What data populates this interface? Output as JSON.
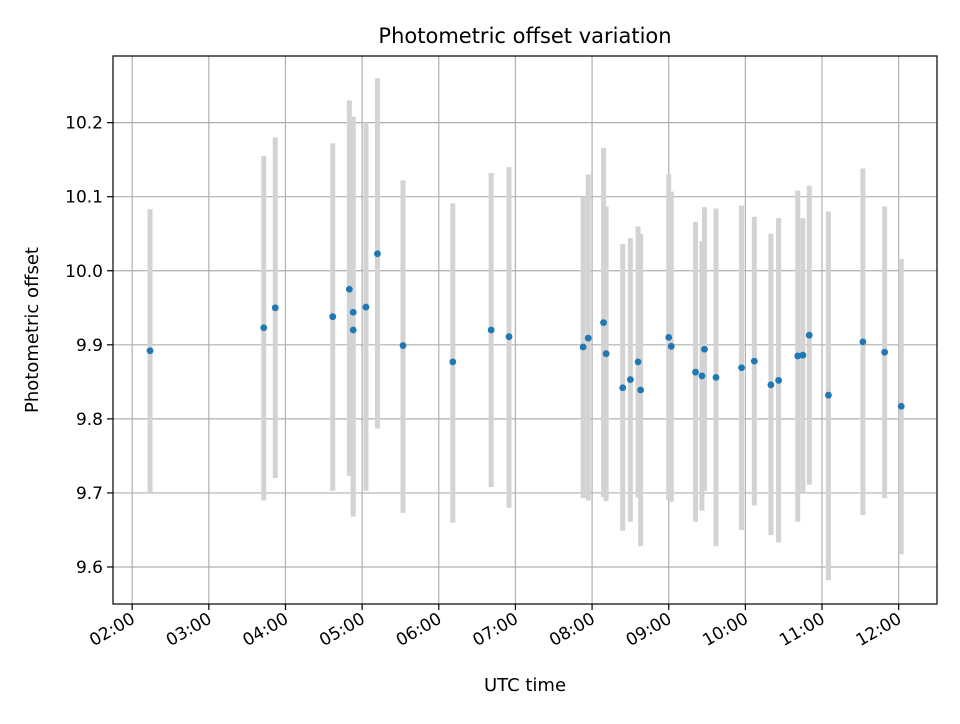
{
  "chart_data": {
    "type": "scatter",
    "title": "Photometric offset variation",
    "xlabel": "UTC time",
    "ylabel": "Photometric offset",
    "x_tick_labels": [
      "02:00",
      "03:00",
      "04:00",
      "05:00",
      "06:00",
      "07:00",
      "08:00",
      "09:00",
      "10:00",
      "11:00",
      "12:00"
    ],
    "y_tick_labels": [
      "9.6",
      "9.7",
      "9.8",
      "9.9",
      "10.0",
      "10.1",
      "10.2"
    ],
    "xlim": [
      "01:45",
      "12:30"
    ],
    "ylim": [
      9.55,
      10.29
    ],
    "grid": true,
    "colors": {
      "point": "#1f77b4",
      "errorbar": "#d3d3d3",
      "grid": "#b0b0b0"
    },
    "points": [
      {
        "t": "02:14",
        "y": 9.892,
        "lo": 9.7,
        "hi": 10.083
      },
      {
        "t": "03:43",
        "y": 9.923,
        "lo": 9.69,
        "hi": 10.155
      },
      {
        "t": "03:52",
        "y": 9.95,
        "lo": 9.72,
        "hi": 10.18
      },
      {
        "t": "04:37",
        "y": 9.938,
        "lo": 9.703,
        "hi": 10.172
      },
      {
        "t": "04:50",
        "y": 9.975,
        "lo": 9.723,
        "hi": 10.23
      },
      {
        "t": "04:53",
        "y": 9.92,
        "lo": 9.668,
        "hi": 10.208
      },
      {
        "t": "04:53",
        "y": 9.944,
        "lo": 9.675,
        "hi": 10.208
      },
      {
        "t": "05:03",
        "y": 9.951,
        "lo": 9.703,
        "hi": 10.2
      },
      {
        "t": "05:12",
        "y": 10.023,
        "lo": 9.787,
        "hi": 10.26
      },
      {
        "t": "05:32",
        "y": 9.899,
        "lo": 9.673,
        "hi": 10.122
      },
      {
        "t": "06:11",
        "y": 9.877,
        "lo": 9.66,
        "hi": 10.091
      },
      {
        "t": "06:41",
        "y": 9.92,
        "lo": 9.708,
        "hi": 10.132
      },
      {
        "t": "06:55",
        "y": 9.911,
        "lo": 9.68,
        "hi": 10.14
      },
      {
        "t": "07:53",
        "y": 9.897,
        "lo": 9.693,
        "hi": 10.1
      },
      {
        "t": "07:57",
        "y": 9.909,
        "lo": 9.69,
        "hi": 10.13
      },
      {
        "t": "08:09",
        "y": 9.93,
        "lo": 9.694,
        "hi": 10.166
      },
      {
        "t": "08:11",
        "y": 9.888,
        "lo": 9.689,
        "hi": 10.087
      },
      {
        "t": "08:24",
        "y": 9.842,
        "lo": 9.649,
        "hi": 10.036
      },
      {
        "t": "08:30",
        "y": 9.853,
        "lo": 9.661,
        "hi": 10.044
      },
      {
        "t": "08:36",
        "y": 9.877,
        "lo": 9.694,
        "hi": 10.06
      },
      {
        "t": "08:38",
        "y": 9.839,
        "lo": 9.628,
        "hi": 10.05
      },
      {
        "t": "09:00",
        "y": 9.91,
        "lo": 9.69,
        "hi": 10.13
      },
      {
        "t": "09:02",
        "y": 9.898,
        "lo": 9.688,
        "hi": 10.107
      },
      {
        "t": "09:21",
        "y": 9.863,
        "lo": 9.661,
        "hi": 10.066
      },
      {
        "t": "09:26",
        "y": 9.858,
        "lo": 9.676,
        "hi": 10.04
      },
      {
        "t": "09:28",
        "y": 9.894,
        "lo": 9.703,
        "hi": 10.086
      },
      {
        "t": "09:37",
        "y": 9.856,
        "lo": 9.628,
        "hi": 10.084
      },
      {
        "t": "09:57",
        "y": 9.869,
        "lo": 9.65,
        "hi": 10.088
      },
      {
        "t": "10:07",
        "y": 9.878,
        "lo": 9.683,
        "hi": 10.073
      },
      {
        "t": "10:20",
        "y": 9.846,
        "lo": 9.643,
        "hi": 10.05
      },
      {
        "t": "10:26",
        "y": 9.852,
        "lo": 9.633,
        "hi": 10.071
      },
      {
        "t": "10:41",
        "y": 9.885,
        "lo": 9.661,
        "hi": 10.108
      },
      {
        "t": "10:45",
        "y": 9.886,
        "lo": 9.7,
        "hi": 10.071
      },
      {
        "t": "10:50",
        "y": 9.913,
        "lo": 9.711,
        "hi": 10.115
      },
      {
        "t": "11:05",
        "y": 9.832,
        "lo": 9.582,
        "hi": 10.08
      },
      {
        "t": "11:32",
        "y": 9.904,
        "lo": 9.67,
        "hi": 10.138
      },
      {
        "t": "11:49",
        "y": 9.89,
        "lo": 9.693,
        "hi": 10.087
      },
      {
        "t": "12:02",
        "y": 9.817,
        "lo": 9.617,
        "hi": 10.016
      }
    ]
  }
}
